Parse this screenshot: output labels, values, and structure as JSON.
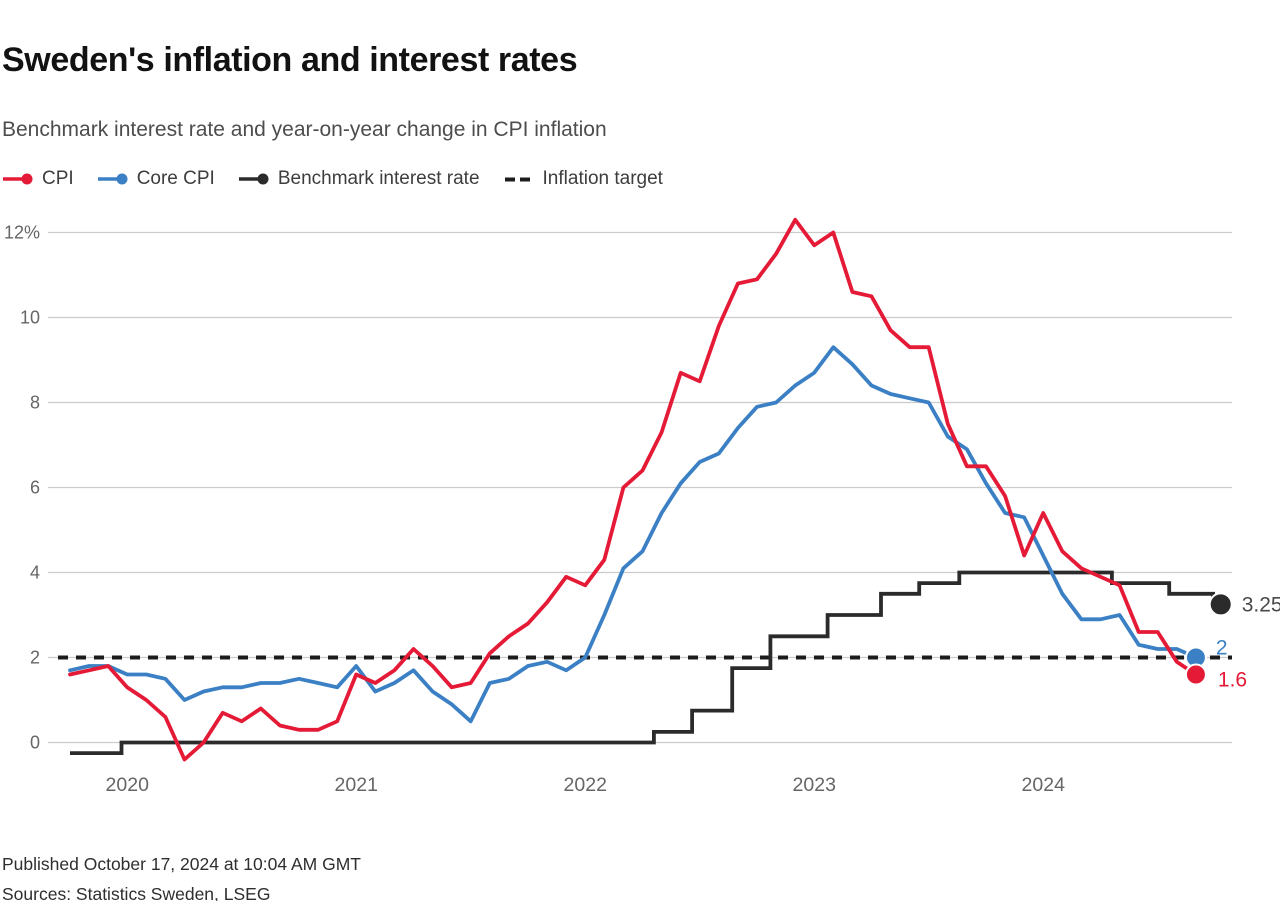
{
  "header": {
    "title": "Sweden's inflation and interest rates",
    "subtitle": "Benchmark interest rate and year-on-year change in CPI inflation"
  },
  "legend": [
    {
      "id": "cpi",
      "label": "CPI",
      "color": "#e41a36",
      "marker": "line-dot"
    },
    {
      "id": "core-cpi",
      "label": "Core CPI",
      "color": "#3b80c4",
      "marker": "line-dot"
    },
    {
      "id": "benchmark",
      "label": "Benchmark interest rate",
      "color": "#2b2b2b",
      "marker": "line-dot"
    },
    {
      "id": "inflation-target",
      "label": "Inflation target",
      "color": "#1c1c1c",
      "marker": "dashes"
    }
  ],
  "footer": {
    "published": "Published October 17, 2024 at 10:04 AM GMT",
    "sources": "Sources: Statistics Sweden, LSEG"
  },
  "colors": {
    "cpi": "#e41a36",
    "core_cpi": "#3b80c4",
    "benchmark": "#2b2b2b",
    "target": "#1c1c1c",
    "grid": "#cccccc",
    "axis_text": "#666666"
  },
  "chart_data": {
    "type": "line",
    "x_start": "2019-10",
    "x_end": "2024-09",
    "frequency": "monthly",
    "unit": "%",
    "ylim": [
      -0.5,
      12.5
    ],
    "grid": true,
    "yticks": [
      {
        "value": 0,
        "label": "0"
      },
      {
        "value": 2,
        "label": "2"
      },
      {
        "value": 4,
        "label": "4"
      },
      {
        "value": 6,
        "label": "6"
      },
      {
        "value": 8,
        "label": "8"
      },
      {
        "value": 10,
        "label": "10"
      },
      {
        "value": 12,
        "label": "12%"
      }
    ],
    "xticks": [
      {
        "m": 3,
        "label": "2020"
      },
      {
        "m": 15,
        "label": "2021"
      },
      {
        "m": 27,
        "label": "2022"
      },
      {
        "m": 39,
        "label": "2023"
      },
      {
        "m": 51,
        "label": "2024"
      }
    ],
    "target_line": {
      "label": "Inflation target",
      "value": 2
    },
    "series": [
      {
        "id": "benchmark",
        "name": "Benchmark interest rate",
        "type": "step",
        "color": "#2b2b2b",
        "segments": [
          {
            "value": -0.25,
            "from": 0,
            "to": 2.7
          },
          {
            "value": 0.0,
            "from": 2.7,
            "to": 30.6
          },
          {
            "value": 0.25,
            "from": 30.6,
            "to": 32.6
          },
          {
            "value": 0.75,
            "from": 32.6,
            "to": 34.7
          },
          {
            "value": 1.75,
            "from": 34.7,
            "to": 36.7
          },
          {
            "value": 2.5,
            "from": 36.7,
            "to": 39.7
          },
          {
            "value": 3.0,
            "from": 39.7,
            "to": 42.5
          },
          {
            "value": 3.5,
            "from": 42.5,
            "to": 44.5
          },
          {
            "value": 3.75,
            "from": 44.5,
            "to": 46.6
          },
          {
            "value": 4.0,
            "from": 46.6,
            "to": 54.6
          },
          {
            "value": 3.75,
            "from": 54.6,
            "to": 57.6
          },
          {
            "value": 3.5,
            "from": 57.6,
            "to": 59.9
          },
          {
            "value": 3.25,
            "from": 59.9,
            "to": 60.3
          }
        ],
        "end": {
          "m": 60.3,
          "value": 3.25,
          "label": "3.25",
          "label_color": "#4a4a4a",
          "dot_r": 11,
          "label_dx": 21,
          "label_dy": 7
        }
      },
      {
        "id": "core-cpi",
        "name": "Core CPI",
        "type": "line",
        "color": "#3b80c4",
        "values": [
          1.7,
          1.8,
          1.8,
          1.6,
          1.6,
          1.5,
          1.0,
          1.2,
          1.3,
          1.3,
          1.4,
          1.4,
          1.5,
          1.4,
          1.3,
          1.8,
          1.2,
          1.4,
          1.7,
          1.2,
          0.9,
          0.5,
          1.4,
          1.5,
          1.8,
          1.9,
          1.7,
          2.0,
          3.0,
          4.1,
          4.5,
          5.4,
          6.1,
          6.6,
          6.8,
          7.4,
          7.9,
          8.0,
          8.4,
          8.7,
          9.3,
          8.9,
          8.4,
          8.2,
          8.1,
          8.0,
          7.2,
          6.9,
          6.1,
          5.4,
          5.3,
          4.4,
          3.5,
          2.9,
          2.9,
          3.0,
          2.3,
          2.2,
          2.2,
          2.0
        ],
        "end": {
          "m": 59,
          "value": 2.0,
          "label": "2",
          "label_color": "#3b80c4",
          "dot_r": 10,
          "label_dx": 20,
          "label_dy": -3
        }
      },
      {
        "id": "cpi",
        "name": "CPI",
        "type": "line",
        "color": "#e41a36",
        "values": [
          1.6,
          1.7,
          1.8,
          1.3,
          1.0,
          0.6,
          -0.4,
          0.0,
          0.7,
          0.5,
          0.8,
          0.4,
          0.3,
          0.3,
          0.5,
          1.6,
          1.4,
          1.7,
          2.2,
          1.8,
          1.3,
          1.4,
          2.1,
          2.5,
          2.8,
          3.3,
          3.9,
          3.7,
          4.3,
          6.0,
          6.4,
          7.3,
          8.7,
          8.5,
          9.8,
          10.8,
          10.9,
          11.5,
          12.3,
          11.7,
          12.0,
          10.6,
          10.5,
          9.7,
          9.3,
          9.3,
          7.5,
          6.5,
          6.5,
          5.8,
          4.4,
          5.4,
          4.5,
          4.1,
          3.9,
          3.7,
          2.6,
          2.6,
          1.9,
          1.6
        ],
        "end": {
          "m": 59,
          "value": 1.6,
          "label": "1.6",
          "label_color": "#e41a36",
          "dot_r": 10,
          "label_dx": 22,
          "label_dy": 12
        }
      }
    ]
  }
}
